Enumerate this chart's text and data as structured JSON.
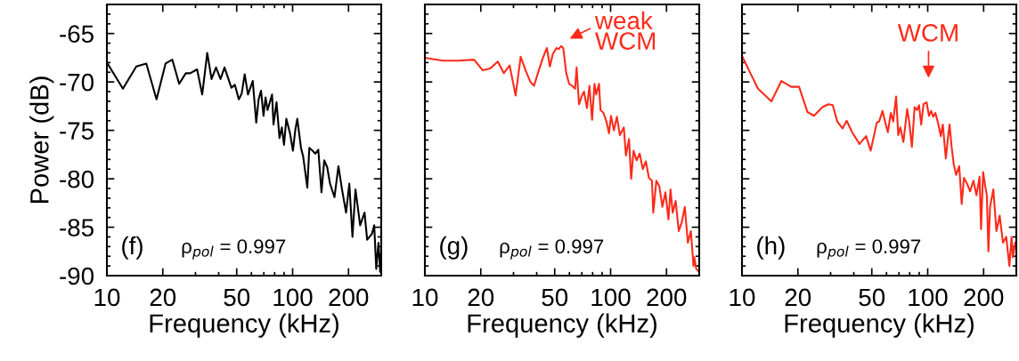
{
  "chart_data": [
    {
      "type": "line",
      "xlabel": "Frequency (kHz)",
      "ylabel": "Power (dB)",
      "log": "x",
      "xlim": [
        10,
        300
      ],
      "ylim": [
        -90,
        -62
      ],
      "xticks": [
        10,
        20,
        50,
        100,
        200
      ],
      "yticks": [
        {
          "value": -90,
          "label": "-90"
        },
        {
          "value": -85,
          "label": "-85"
        },
        {
          "value": -80,
          "label": "-80"
        },
        {
          "value": -75,
          "label": "-75"
        },
        {
          "value": -70,
          "label": "-70"
        },
        {
          "value": -65,
          "label": "-65"
        }
      ],
      "grid": false,
      "annotations": [
        "(f)",
        "ρ$_{pol}$ = 0.997"
      ],
      "series": [
        {
          "color": "#000000",
          "x": [
            10,
            12.2,
            14.4,
            16.3,
            18.5,
            20.7,
            22.5,
            24.5,
            26.6,
            28.1,
            30.6,
            32.6,
            34.7,
            36.6,
            38.7,
            40.9,
            43.0,
            46.8,
            48.9,
            51.3,
            53.2,
            55.2,
            57.5,
            59.0,
            61.0,
            63.7,
            65.6,
            67.6,
            69.7,
            71.5,
            73.3,
            77.5,
            78.9,
            81.9,
            85.0,
            87.5,
            89.9,
            92.5,
            96.8,
            100.4,
            103.3,
            106,
            110.9,
            114,
            120,
            123,
            128,
            132.5,
            137.5,
            143,
            148,
            153.5,
            159,
            168,
            176.5,
            184.5,
            194,
            202,
            210,
            218,
            231,
            244,
            252,
            267,
            275,
            282,
            290,
            296,
            299
          ],
          "values": [
            -68.0,
            -70.7,
            -68.4,
            -68.1,
            -71.8,
            -68.1,
            -67.7,
            -70.2,
            -69.1,
            -69.1,
            -68.7,
            -71.3,
            -67.0,
            -69.7,
            -68.5,
            -69.7,
            -68.5,
            -70.6,
            -70.3,
            -71.8,
            -71.2,
            -69.2,
            -71.3,
            -70.7,
            -69.9,
            -74.2,
            -71.8,
            -70.9,
            -73.5,
            -71.6,
            -72.9,
            -71.3,
            -74.4,
            -72.1,
            -75.8,
            -74.7,
            -76.5,
            -73.8,
            -75.3,
            -77.1,
            -75.0,
            -73.8,
            -76.8,
            -77.7,
            -80.9,
            -76.8,
            -77.1,
            -77.4,
            -77.0,
            -81.4,
            -78.1,
            -78.8,
            -80.5,
            -81.9,
            -78.7,
            -81.1,
            -83.5,
            -80.5,
            -86.0,
            -81.1,
            -84.8,
            -83.5,
            -86.3,
            -85.7,
            -84.8,
            -89.3,
            -86.6,
            -89.6,
            -87.8
          ]
        }
      ]
    },
    {
      "type": "line",
      "xlabel": "Frequency (kHz)",
      "log": "x",
      "xlim": [
        10,
        300
      ],
      "ylim": [
        -90,
        -62
      ],
      "xticks": [
        10,
        20,
        50,
        100,
        200
      ],
      "yticks": [
        {
          "value": -90,
          "label": null
        },
        {
          "value": -85,
          "label": null
        },
        {
          "value": -80,
          "label": null
        },
        {
          "value": -75,
          "label": null
        },
        {
          "value": -70,
          "label": null
        },
        {
          "value": -65,
          "label": null
        }
      ],
      "tick_labels": "x",
      "grid": false,
      "annotations": [
        "(g)",
        "ρ$_{pol}$ = 0.997",
        "weak\nWCM"
      ],
      "series": [
        {
          "color": "#ff2a1a",
          "x": [
            10,
            12.5,
            15.0,
            18.4,
            20.5,
            22.5,
            24.7,
            26.6,
            28.6,
            30.8,
            32.8,
            35.0,
            37.0,
            38.7,
            40.9,
            43.4,
            45.4,
            47.1,
            48.9,
            51.1,
            52.6,
            54.1,
            55.6,
            57.7,
            59.8,
            62.0,
            64.4,
            65.6,
            67.6,
            70.1,
            71.9,
            74.6,
            76.9,
            79.5,
            81.9,
            83.7,
            86.6,
            88.2,
            91.6,
            95.0,
            98.0,
            100.5,
            104.2,
            108.1,
            112.2,
            117.8,
            120.9,
            125.6,
            129.0,
            132.9,
            138.1,
            143.4,
            149.1,
            154.8,
            160.8,
            166.9,
            169.7,
            176.3,
            183.0,
            190.0,
            197.3,
            204.9,
            210.1,
            215.9,
            224.1,
            232.7,
            241.6,
            250.9,
            260.5,
            270.5,
            279.4,
            282.2,
            289,
            298.8
          ],
          "values": [
            -67.5,
            -67.8,
            -67.8,
            -67.7,
            -68.8,
            -68.6,
            -67.9,
            -69.1,
            -68.3,
            -71.4,
            -67.4,
            -68.9,
            -70.0,
            -70.4,
            -68.9,
            -67.4,
            -66.5,
            -68.4,
            -67.1,
            -66.5,
            -66.6,
            -66.3,
            -66.5,
            -69.1,
            -70.2,
            -70.4,
            -70.7,
            -68.5,
            -72.3,
            -71.4,
            -71.0,
            -72.7,
            -70.4,
            -73.9,
            -70.2,
            -71.3,
            -70.2,
            -72.9,
            -73.2,
            -74.1,
            -75.3,
            -73.5,
            -75.0,
            -73.6,
            -75.5,
            -74.7,
            -77.6,
            -75.9,
            -80.0,
            -77.1,
            -78.1,
            -77.4,
            -79.0,
            -78.2,
            -79.9,
            -80.2,
            -83.5,
            -80.2,
            -80.8,
            -82.9,
            -81.4,
            -84.2,
            -81.1,
            -83.5,
            -82.3,
            -85.4,
            -84.5,
            -82.9,
            -86.6,
            -85.4,
            -89.0,
            -88.1,
            -89.3,
            -89.6
          ]
        }
      ]
    },
    {
      "type": "line",
      "xlabel": "Frequency (kHz)",
      "log": "x",
      "xlim": [
        10,
        300
      ],
      "ylim": [
        -90,
        -62
      ],
      "xticks": [
        10,
        20,
        50,
        100,
        200
      ],
      "yticks": [
        {
          "value": -90,
          "label": null
        },
        {
          "value": -85,
          "label": null
        },
        {
          "value": -80,
          "label": null
        },
        {
          "value": -75,
          "label": null
        },
        {
          "value": -70,
          "label": null
        },
        {
          "value": -65,
          "label": null
        }
      ],
      "tick_labels": "x",
      "grid": false,
      "annotations": [
        "(h)",
        "ρ$_{pol}$ = 0.997",
        "WCM"
      ],
      "series": [
        {
          "color": "#ff2a1a",
          "x": [
            10,
            11.1,
            12.2,
            14.4,
            16.3,
            18.4,
            20.3,
            22.5,
            24.4,
            27.1,
            29.2,
            30.8,
            32.6,
            34.8,
            36.6,
            39.2,
            42.9,
            46.6,
            49.3,
            53.2,
            54.7,
            57.1,
            58.8,
            61.0,
            63.3,
            65.2,
            67.6,
            69.4,
            71.2,
            74.0,
            77.5,
            79.5,
            82.2,
            85.0,
            87.6,
            89.8,
            92.2,
            94.9,
            98.6,
            101.6,
            104.3,
            107.0,
            110.0,
            114.2,
            117.6,
            120.6,
            125.2,
            128.3,
            131.1,
            134.5,
            138.1,
            142.3,
            147.8,
            152.4,
            156.7,
            162.8,
            169.2,
            176.2,
            183.0,
            190.2,
            193.7,
            198.8,
            203.4,
            208.1,
            212.2,
            216.6,
            225.6,
            234.5,
            244.1,
            254.2,
            264.6,
            275.3,
            282.9,
            287.2,
            296
          ],
          "values": [
            -67.3,
            -69.1,
            -70.7,
            -72.0,
            -69.9,
            -70.5,
            -70.5,
            -73.1,
            -73.5,
            -72.6,
            -72.3,
            -72.4,
            -74.1,
            -74.8,
            -74.0,
            -75.2,
            -76.4,
            -75.6,
            -77.1,
            -74.2,
            -74.1,
            -73.0,
            -74.0,
            -75.2,
            -73.2,
            -74.1,
            -71.5,
            -75.5,
            -74.7,
            -76.2,
            -72.8,
            -74.1,
            -76.7,
            -72.6,
            -72.9,
            -72.4,
            -74.4,
            -72.3,
            -72.1,
            -73.5,
            -73.0,
            -73.6,
            -73.2,
            -74.4,
            -75.6,
            -74.4,
            -77.9,
            -75.9,
            -74.4,
            -76.7,
            -78.5,
            -79.6,
            -78.7,
            -82.6,
            -79.9,
            -80.5,
            -81.3,
            -80.2,
            -81.7,
            -79.8,
            -85.2,
            -79.3,
            -80.6,
            -81.7,
            -87.5,
            -82.9,
            -81.1,
            -85.4,
            -83.8,
            -86.6,
            -86.0,
            -89.0,
            -86.0,
            -88.1,
            -86.6
          ]
        }
      ]
    }
  ]
}
